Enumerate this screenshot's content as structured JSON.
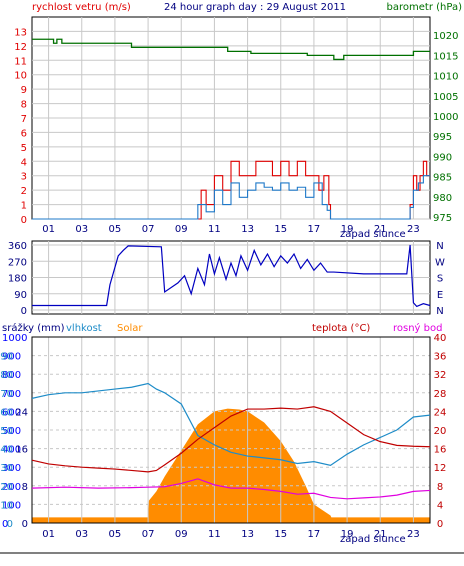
{
  "title": "24 hour graph day : 29 August 2011",
  "colors": {
    "wind": "#e00000",
    "wind_avg": "#1e78c8",
    "barometer": "#007000",
    "direction": "#0000c0",
    "rain": "#0000ff",
    "humidity": "#1e8cc8",
    "solar": "#ff8c00",
    "temperature": "#c00000",
    "dewpoint": "#e000e0",
    "grid": "#c8c8c8",
    "axis_text": "#000080"
  },
  "x_ticks": [
    "01",
    "03",
    "05",
    "07",
    "09",
    "11",
    "13",
    "15",
    "17",
    "19",
    "21",
    "23"
  ],
  "sunset_label": "západ slunce",
  "chart_data": [
    {
      "type": "line",
      "panel": "wind-barometer",
      "title": "24 hour graph day : 29 August 2011",
      "left_axis_label": "rychlost vetru (m/s)",
      "right_axis_label": "barometr (hPa)",
      "left_ylim": [
        0,
        14
      ],
      "left_ticks": [
        0,
        1,
        2,
        3,
        4,
        5,
        6,
        7,
        8,
        9,
        10,
        11,
        12,
        13
      ],
      "right_ylim": [
        974.5,
        1024.5
      ],
      "right_ticks": [
        975,
        980,
        985,
        990,
        995,
        1000,
        1005,
        1010,
        1015,
        1020
      ],
      "xlim": [
        0,
        24
      ],
      "series": [
        {
          "name": "barometr",
          "axis": "right",
          "x": [
            0,
            1.0,
            1.3,
            1.5,
            1.8,
            2.0,
            5.8,
            6.0,
            11.5,
            11.8,
            13.0,
            13.2,
            14.0,
            16.4,
            16.6,
            18.0,
            18.2,
            18.6,
            18.8,
            21.0,
            21.5,
            22.8,
            23.0,
            23.6,
            24.0
          ],
          "y": [
            1019,
            1019,
            1018,
            1019,
            1018,
            1018,
            1018,
            1017,
            1017,
            1016,
            1016,
            1015.5,
            1015.5,
            1015.5,
            1015,
            1015,
            1014,
            1014,
            1015,
            1015,
            1015,
            1015,
            1016,
            1016,
            1016
          ]
        },
        {
          "name": "naraz",
          "axis": "left",
          "x": [
            0,
            10.0,
            10.2,
            10.5,
            11.0,
            11.5,
            12.0,
            12.5,
            13.0,
            13.5,
            14.0,
            14.5,
            15.0,
            15.5,
            16.0,
            16.5,
            17.0,
            17.3,
            17.6,
            17.9,
            18.0,
            22.6,
            22.8,
            23.0,
            23.2,
            23.4,
            23.6,
            23.8,
            24.0
          ],
          "y": [
            0,
            0,
            2,
            1,
            3,
            2,
            4,
            3,
            3,
            4,
            4,
            3,
            4,
            3,
            4,
            3,
            3,
            2,
            3,
            1,
            0,
            0,
            1,
            3,
            2,
            3,
            4,
            3,
            3
          ]
        },
        {
          "name": "prumer",
          "axis": "left",
          "x": [
            0,
            9.7,
            10.0,
            10.5,
            11.0,
            11.5,
            12.0,
            12.5,
            13.0,
            13.5,
            14.0,
            14.5,
            15.0,
            15.5,
            16.0,
            16.5,
            17.0,
            17.5,
            17.8,
            18.0,
            22.6,
            22.8,
            23.0,
            23.3,
            23.6,
            23.8,
            24.0
          ],
          "y": [
            0,
            0,
            1,
            0.5,
            2,
            1,
            2.5,
            1.5,
            2,
            2.5,
            2.2,
            2,
            2.5,
            2,
            2.2,
            1.5,
            2.5,
            1,
            0.6,
            0,
            0,
            0.8,
            2,
            2.5,
            3,
            3,
            3
          ]
        }
      ]
    },
    {
      "type": "line",
      "panel": "wind-direction",
      "ylim": [
        0,
        360
      ],
      "left_ticks": [
        0,
        90,
        180,
        270,
        360
      ],
      "right_ticks": [
        "N",
        "W",
        "S",
        "E",
        "N"
      ],
      "xlim": [
        0,
        24
      ],
      "series": [
        {
          "name": "smer vetru",
          "x": [
            0,
            4.5,
            4.7,
            5.2,
            5.5,
            5.8,
            7.8,
            8.0,
            8.8,
            9.2,
            9.6,
            10.0,
            10.4,
            10.7,
            11.0,
            11.3,
            11.7,
            12.0,
            12.3,
            12.6,
            13.0,
            13.4,
            13.8,
            14.2,
            14.6,
            15.0,
            15.4,
            15.8,
            16.2,
            16.6,
            17.0,
            17.4,
            17.8,
            18.2,
            20.0,
            22.0,
            22.6,
            22.8,
            23.0,
            23.2,
            23.6,
            24.0
          ],
          "y": [
            25,
            25,
            140,
            300,
            330,
            355,
            350,
            100,
            150,
            190,
            90,
            230,
            140,
            310,
            200,
            290,
            170,
            260,
            190,
            300,
            220,
            330,
            250,
            310,
            240,
            300,
            260,
            310,
            230,
            280,
            220,
            260,
            210,
            210,
            200,
            200,
            200,
            360,
            40,
            20,
            35,
            25
          ]
        }
      ]
    },
    {
      "type": "line",
      "panel": "temperature-humidity-solar",
      "labels": {
        "rain": "srážky (mm)",
        "humidity": "vlhkost",
        "solar": "Solar",
        "temperature": "teplota (°C)",
        "dewpoint": "rosný bod"
      },
      "solar_ticks": [
        0,
        100,
        200,
        300,
        400,
        500,
        600,
        700,
        800,
        900,
        1000
      ],
      "humidity_ticks": [
        0,
        10,
        20,
        30,
        40,
        50,
        60,
        70,
        80,
        90,
        100
      ],
      "rain_ticks": [
        0,
        4,
        8,
        12,
        16,
        20,
        24,
        28,
        32,
        36,
        40
      ],
      "temp_ticks": [
        0,
        4,
        8,
        12,
        16,
        20,
        24,
        28,
        32,
        36,
        40
      ],
      "temp_ylim": [
        0,
        40
      ],
      "xlim": [
        0,
        24
      ],
      "series": [
        {
          "name": "vlhkost",
          "axis": "humidity",
          "x": [
            0,
            1,
            2,
            3,
            4,
            5,
            6,
            7,
            7.5,
            8,
            9,
            10,
            11,
            12,
            13,
            14,
            15,
            16,
            17,
            18,
            19,
            20,
            21,
            22,
            23,
            24
          ],
          "y": [
            67,
            69,
            70,
            70,
            71,
            72,
            73,
            75,
            72,
            70,
            64,
            47,
            42,
            38,
            36,
            35,
            34,
            32,
            33,
            31,
            37,
            42,
            46,
            50,
            57,
            58
          ]
        },
        {
          "name": "teplota",
          "axis": "temp",
          "x": [
            0,
            1,
            2,
            3,
            4,
            5,
            6,
            7,
            7.5,
            8,
            9,
            10,
            11,
            12,
            13,
            14,
            15,
            16,
            17,
            18,
            19,
            20,
            21,
            22,
            23,
            24
          ],
          "y": [
            13.5,
            12.7,
            12.3,
            12,
            11.8,
            11.6,
            11.3,
            11,
            11.3,
            12.5,
            15,
            18,
            20.5,
            23,
            24.5,
            24.5,
            24.7,
            24.5,
            25,
            24,
            21.5,
            19,
            17.5,
            16.7,
            16.5,
            16.4
          ]
        },
        {
          "name": "rosný bod",
          "axis": "temp",
          "x": [
            0,
            2,
            4,
            6,
            7,
            8,
            9,
            10,
            11,
            12,
            13,
            14,
            15,
            16,
            17,
            18,
            19,
            20,
            21,
            22,
            23,
            24
          ],
          "y": [
            7.5,
            7.7,
            7.5,
            7.6,
            7.7,
            7.8,
            8.5,
            9.5,
            8.2,
            7.5,
            7.5,
            7.2,
            6.8,
            6.2,
            6.4,
            5.5,
            5.2,
            5.4,
            5.6,
            6.0,
            6.8,
            7.0
          ]
        },
        {
          "name": "Solar",
          "axis": "solar",
          "type": "area",
          "x": [
            0,
            7.0,
            7.05,
            7.5,
            8,
            9,
            10,
            11,
            11.8,
            12.5,
            13,
            14,
            15,
            15.8,
            16.5,
            17,
            18,
            18.05,
            24
          ],
          "y": [
            30,
            30,
            120,
            170,
            250,
            390,
            530,
            600,
            615,
            610,
            600,
            540,
            440,
            330,
            200,
            100,
            40,
            30,
            30
          ]
        }
      ]
    }
  ]
}
